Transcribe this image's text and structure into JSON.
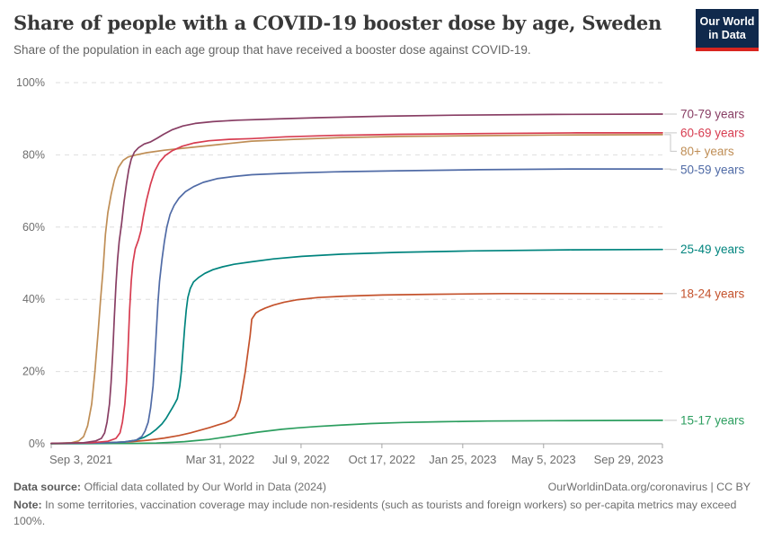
{
  "header": {
    "title": "Share of people with a COVID-19 booster dose by age, Sweden",
    "subtitle": "Share of the population in each age group that have received a booster dose against COVID-19.",
    "logo": {
      "line1": "Our World",
      "line2": "in Data",
      "bg_color": "#10294C",
      "accent_color": "#D9251F"
    }
  },
  "chart_data": {
    "type": "line",
    "title": "Share of people with a COVID-19 booster dose by age, Sweden",
    "x_axis": {
      "unit": "date",
      "range_days": [
        0,
        756
      ],
      "ticks": [
        {
          "day": 0,
          "label": "Sep 3, 2021"
        },
        {
          "day": 209,
          "label": "Mar 31, 2022"
        },
        {
          "day": 309,
          "label": "Jul 9, 2022"
        },
        {
          "day": 409,
          "label": "Oct 17, 2022"
        },
        {
          "day": 509,
          "label": "Jan 25, 2023"
        },
        {
          "day": 609,
          "label": "May 5, 2023"
        },
        {
          "day": 756,
          "label": "Sep 29, 2023"
        }
      ]
    },
    "y_axis": {
      "unit": "%",
      "range": [
        0,
        100
      ],
      "ticks": [
        0,
        20,
        40,
        60,
        80,
        100
      ],
      "gridlines": true
    },
    "legend_position": "right",
    "series": [
      {
        "label": "70-79 years",
        "color": "#883E64",
        "points": [
          [
            0,
            0.1
          ],
          [
            40,
            0.3
          ],
          [
            55,
            0.8
          ],
          [
            62,
            1.5
          ],
          [
            66,
            3
          ],
          [
            69,
            6
          ],
          [
            72,
            11
          ],
          [
            74,
            17
          ],
          [
            76,
            25
          ],
          [
            78,
            35
          ],
          [
            80,
            44
          ],
          [
            82,
            51
          ],
          [
            84,
            56
          ],
          [
            87,
            61
          ],
          [
            90,
            67
          ],
          [
            93,
            72
          ],
          [
            96,
            76
          ],
          [
            99,
            78.8
          ],
          [
            103,
            80.8
          ],
          [
            108,
            82
          ],
          [
            115,
            83
          ],
          [
            123,
            83.6
          ],
          [
            131,
            84.6
          ],
          [
            139,
            85.7
          ],
          [
            150,
            87
          ],
          [
            163,
            88
          ],
          [
            178,
            88.7
          ],
          [
            200,
            89.2
          ],
          [
            230,
            89.6
          ],
          [
            270,
            89.9
          ],
          [
            330,
            90.3
          ],
          [
            410,
            90.7
          ],
          [
            500,
            91
          ],
          [
            620,
            91.2
          ],
          [
            756,
            91.3
          ]
        ]
      },
      {
        "label": "60-69 years",
        "color": "#D73C50",
        "points": [
          [
            0,
            0.1
          ],
          [
            50,
            0.3
          ],
          [
            70,
            0.7
          ],
          [
            80,
            1.5
          ],
          [
            85,
            3
          ],
          [
            88,
            6
          ],
          [
            91,
            11
          ],
          [
            93,
            17
          ],
          [
            95,
            26
          ],
          [
            97,
            37
          ],
          [
            99,
            45
          ],
          [
            101,
            50
          ],
          [
            104,
            54
          ],
          [
            108,
            56.5
          ],
          [
            111,
            59
          ],
          [
            114,
            63
          ],
          [
            118,
            67.5
          ],
          [
            123,
            72
          ],
          [
            128,
            75.5
          ],
          [
            134,
            78
          ],
          [
            141,
            79.8
          ],
          [
            150,
            81.2
          ],
          [
            162,
            82.4
          ],
          [
            177,
            83.3
          ],
          [
            195,
            83.9
          ],
          [
            220,
            84.3
          ],
          [
            248,
            84.5
          ],
          [
            290,
            85
          ],
          [
            350,
            85.4
          ],
          [
            430,
            85.7
          ],
          [
            530,
            85.9
          ],
          [
            650,
            86.1
          ],
          [
            756,
            86.1
          ]
        ]
      },
      {
        "label": "80+ years",
        "color": "#BF8E56",
        "points": [
          [
            0,
            0.1
          ],
          [
            25,
            0.3
          ],
          [
            34,
            0.8
          ],
          [
            40,
            2
          ],
          [
            45,
            5
          ],
          [
            50,
            11
          ],
          [
            54,
            20
          ],
          [
            58,
            31
          ],
          [
            61,
            40
          ],
          [
            64,
            48
          ],
          [
            67,
            58
          ],
          [
            70,
            64
          ],
          [
            74,
            69
          ],
          [
            78,
            73
          ],
          [
            83,
            76.5
          ],
          [
            89,
            78.5
          ],
          [
            95,
            79.4
          ],
          [
            105,
            80
          ],
          [
            118,
            80.6
          ],
          [
            140,
            81.3
          ],
          [
            170,
            82
          ],
          [
            205,
            82.8
          ],
          [
            248,
            83.8
          ],
          [
            300,
            84.3
          ],
          [
            360,
            84.8
          ],
          [
            430,
            85.1
          ],
          [
            520,
            85.3
          ],
          [
            620,
            85.5
          ],
          [
            756,
            85.6
          ]
        ]
      },
      {
        "label": "50-59 years",
        "color": "#506BA6",
        "points": [
          [
            0,
            0.1
          ],
          [
            60,
            0.2
          ],
          [
            90,
            0.5
          ],
          [
            105,
            1
          ],
          [
            112,
            2
          ],
          [
            116,
            3.5
          ],
          [
            120,
            6
          ],
          [
            123,
            10
          ],
          [
            126,
            16
          ],
          [
            128,
            23
          ],
          [
            130,
            31
          ],
          [
            132,
            39
          ],
          [
            134,
            45
          ],
          [
            137,
            51
          ],
          [
            140,
            56
          ],
          [
            143,
            60
          ],
          [
            147,
            63.5
          ],
          [
            152,
            66
          ],
          [
            158,
            68
          ],
          [
            166,
            69.8
          ],
          [
            176,
            71.2
          ],
          [
            188,
            72.4
          ],
          [
            205,
            73.4
          ],
          [
            225,
            74
          ],
          [
            248,
            74.5
          ],
          [
            290,
            74.9
          ],
          [
            350,
            75.3
          ],
          [
            430,
            75.6
          ],
          [
            530,
            75.9
          ],
          [
            650,
            76.1
          ],
          [
            756,
            76.1
          ]
        ]
      },
      {
        "label": "25-49 years",
        "color": "#00847E",
        "points": [
          [
            0,
            0.1
          ],
          [
            60,
            0.2
          ],
          [
            90,
            0.5
          ],
          [
            105,
            1
          ],
          [
            115,
            1.8
          ],
          [
            123,
            2.8
          ],
          [
            130,
            4
          ],
          [
            137,
            5.5
          ],
          [
            142,
            7
          ],
          [
            146,
            8.5
          ],
          [
            150,
            10
          ],
          [
            153,
            11.2
          ],
          [
            156,
            12.5
          ],
          [
            159,
            16
          ],
          [
            161,
            20
          ],
          [
            163,
            26
          ],
          [
            165,
            32
          ],
          [
            167,
            37
          ],
          [
            169,
            40.5
          ],
          [
            172,
            43
          ],
          [
            176,
            44.8
          ],
          [
            182,
            46
          ],
          [
            190,
            47.2
          ],
          [
            200,
            48.2
          ],
          [
            212,
            49
          ],
          [
            226,
            49.7
          ],
          [
            248,
            50.4
          ],
          [
            275,
            51.2
          ],
          [
            310,
            51.9
          ],
          [
            360,
            52.5
          ],
          [
            430,
            53
          ],
          [
            520,
            53.4
          ],
          [
            640,
            53.7
          ],
          [
            756,
            53.8
          ]
        ]
      },
      {
        "label": "18-24 years",
        "color": "#C4522C",
        "points": [
          [
            0,
            0.1
          ],
          [
            70,
            0.3
          ],
          [
            100,
            0.6
          ],
          [
            120,
            1
          ],
          [
            140,
            1.6
          ],
          [
            158,
            2.3
          ],
          [
            172,
            3
          ],
          [
            185,
            3.8
          ],
          [
            196,
            4.5
          ],
          [
            206,
            5.2
          ],
          [
            215,
            5.8
          ],
          [
            222,
            6.5
          ],
          [
            227,
            7.5
          ],
          [
            231,
            9.5
          ],
          [
            234,
            12
          ],
          [
            237,
            16
          ],
          [
            240,
            20
          ],
          [
            243,
            25
          ],
          [
            246,
            30
          ],
          [
            248,
            34.5
          ],
          [
            253,
            36.2
          ],
          [
            258,
            36.9
          ],
          [
            265,
            37.6
          ],
          [
            275,
            38.4
          ],
          [
            288,
            39.2
          ],
          [
            305,
            39.9
          ],
          [
            330,
            40.5
          ],
          [
            365,
            40.9
          ],
          [
            410,
            41.2
          ],
          [
            470,
            41.4
          ],
          [
            560,
            41.6
          ],
          [
            756,
            41.6
          ]
        ]
      },
      {
        "label": "15-17 years",
        "color": "#2C9E5F",
        "points": [
          [
            0,
            0
          ],
          [
            100,
            0.1
          ],
          [
            130,
            0.2
          ],
          [
            150,
            0.4
          ],
          [
            165,
            0.6
          ],
          [
            180,
            0.9
          ],
          [
            195,
            1.2
          ],
          [
            210,
            1.7
          ],
          [
            225,
            2.2
          ],
          [
            240,
            2.7
          ],
          [
            255,
            3.2
          ],
          [
            270,
            3.6
          ],
          [
            285,
            4
          ],
          [
            305,
            4.4
          ],
          [
            330,
            4.8
          ],
          [
            360,
            5.2
          ],
          [
            395,
            5.6
          ],
          [
            435,
            5.9
          ],
          [
            480,
            6.1
          ],
          [
            540,
            6.3
          ],
          [
            620,
            6.4
          ],
          [
            756,
            6.5
          ]
        ]
      }
    ],
    "grid_color": "#dedede",
    "axis_color": "#a5a5a5",
    "tick_label_color": "#6e6e6e"
  },
  "footer": {
    "datasource_label": "Data source:",
    "datasource_text": " Official data collated by Our World in Data (2024)",
    "link": "OurWorldinData.org/coronavirus | CC BY",
    "note_label": "Note:",
    "note_text": " In some territories, vaccination coverage may include non-residents (such as tourists and foreign workers) so per-capita metrics may exceed 100%."
  }
}
